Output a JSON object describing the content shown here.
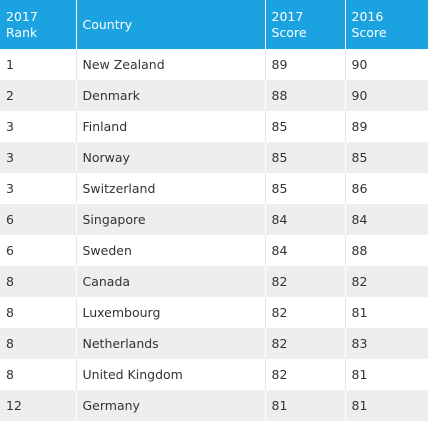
{
  "table": {
    "headers": {
      "rank": [
        "2017",
        "Rank"
      ],
      "country": "Country",
      "score_2017": [
        "2017",
        "Score"
      ],
      "score_2016": [
        "2016",
        "Score"
      ]
    },
    "rows": [
      {
        "rank": "1",
        "country": "New Zealand",
        "score_2017": "89",
        "score_2016": "90"
      },
      {
        "rank": "2",
        "country": "Denmark",
        "score_2017": "88",
        "score_2016": "90"
      },
      {
        "rank": "3",
        "country": "Finland",
        "score_2017": "85",
        "score_2016": "89"
      },
      {
        "rank": "3",
        "country": "Norway",
        "score_2017": "85",
        "score_2016": "85"
      },
      {
        "rank": "3",
        "country": "Switzerland",
        "score_2017": "85",
        "score_2016": "86"
      },
      {
        "rank": "6",
        "country": "Singapore",
        "score_2017": "84",
        "score_2016": "84"
      },
      {
        "rank": "6",
        "country": "Sweden",
        "score_2017": "84",
        "score_2016": "88"
      },
      {
        "rank": "8",
        "country": "Canada",
        "score_2017": "82",
        "score_2016": "82"
      },
      {
        "rank": "8",
        "country": "Luxembourg",
        "score_2017": "82",
        "score_2016": "81"
      },
      {
        "rank": "8",
        "country": "Netherlands",
        "score_2017": "82",
        "score_2016": "83"
      },
      {
        "rank": "8",
        "country": "United Kingdom",
        "score_2017": "82",
        "score_2016": "81"
      },
      {
        "rank": "12",
        "country": "Germany",
        "score_2017": "81",
        "score_2016": "81"
      }
    ]
  },
  "colors": {
    "header_background": "#1aa3e0",
    "header_text": "#ffffff",
    "row_alt_background": "#eeeeee",
    "body_text": "#333333"
  }
}
